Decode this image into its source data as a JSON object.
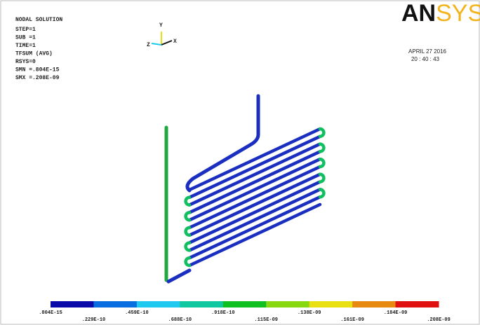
{
  "header": {
    "title": "NODAL SOLUTION",
    "lines": [
      "STEP=1",
      "SUB =1",
      "TIME=1",
      "TFSUM      (AVG)",
      "RSYS=0",
      "SMN =.804E-15",
      "SMX =.208E-09"
    ],
    "logo": {
      "main": "AN",
      "accent": "SYS"
    },
    "date": "APRIL 27 2016",
    "time": "20 : 40 : 43"
  },
  "triad": {
    "y": "Y",
    "x": "X",
    "z": "Z"
  },
  "legend": {
    "labels": [
      ".804E-15",
      ".229E-10",
      ".459E-10",
      ".688E-10",
      ".918E-10",
      ".115E-09",
      ".138E-09",
      ".161E-09",
      ".184E-09",
      ".208E-09"
    ],
    "colors": [
      "#0a0aa8",
      "#0a6de0",
      "#1ec8ee",
      "#10c8a0",
      "#10c020",
      "#88d810",
      "#e8e010",
      "#e88a10",
      "#e01010"
    ]
  }
}
